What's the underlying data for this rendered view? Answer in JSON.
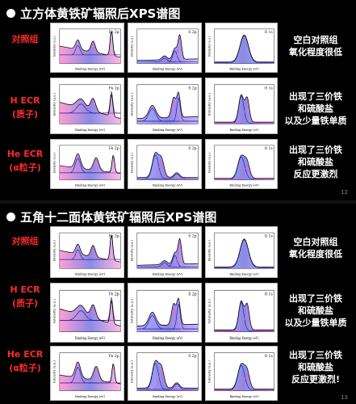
{
  "slide1": {
    "title": "立方体黄铁矿辐照后XPS谱图",
    "rows": [
      {
        "label_lines": [
          "对照组"
        ],
        "desc_lines": [
          "空白对照组",
          "氧化程度很低"
        ]
      },
      {
        "label_lines": [
          "H ECR",
          "(质子)"
        ],
        "desc_lines": [
          "出现了三价铁",
          "和硫酸盐",
          "以及少量铁单质"
        ]
      },
      {
        "label_lines": [
          "He ECR",
          "(α粒子)"
        ],
        "desc_lines": [
          "出现了三价铁",
          "和硫酸盐",
          "反应更激烈"
        ]
      }
    ],
    "page": "12"
  },
  "slide2": {
    "title": "五角十二面体黄铁矿辐照后XPS谱图",
    "rows": [
      {
        "label_lines": [
          "对照组"
        ],
        "desc_lines": [
          "空白对照组",
          "氧化程度很低"
        ]
      },
      {
        "label_lines": [
          "H ECR",
          "(质子)"
        ],
        "desc_lines": [
          "出现了三价铁",
          "和硫酸盐",
          "以及少量铁单质"
        ]
      },
      {
        "label_lines": [
          "He ECR",
          "(α粒子)"
        ],
        "desc_lines": [
          "出现了三价铁",
          "和硫酸盐",
          "反应更激烈!"
        ]
      }
    ],
    "page": "13"
  },
  "panel_titles": [
    "Fe 2p",
    "S 2p",
    "O 1s"
  ],
  "axis": {
    "xlabel": "Binding Energy (eV)",
    "ylabel": "Intensity (a.u.)"
  },
  "colors": {
    "title_text": "#ffffff",
    "label_red": "#ff2a2a",
    "spectrum_blue": "#2a2ad0",
    "spectrum_pink": "#ff4fb0"
  }
}
